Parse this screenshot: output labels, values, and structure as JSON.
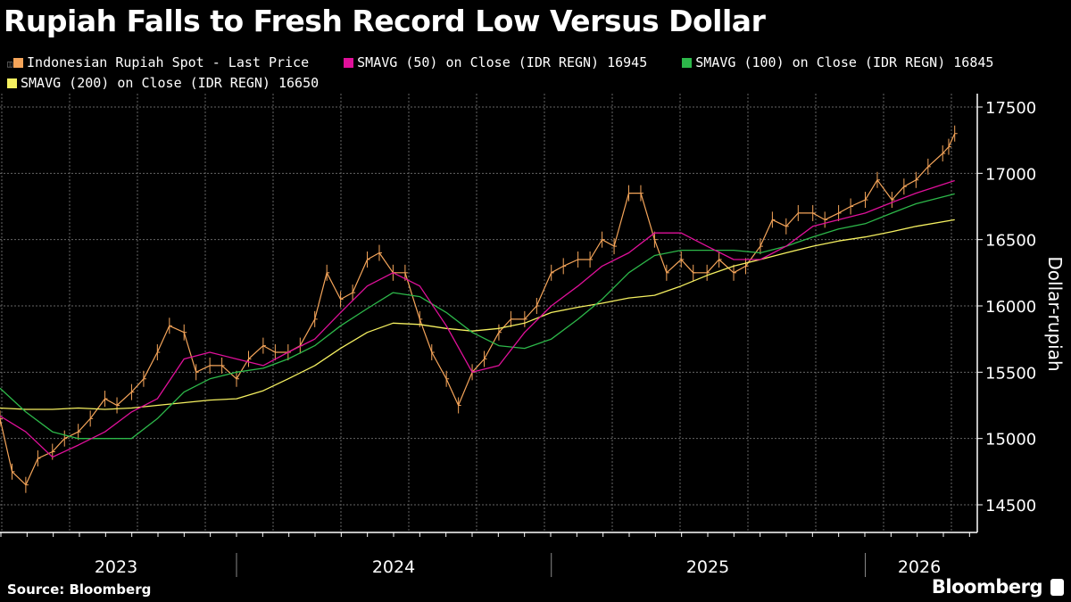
{
  "title": "Rupiah Falls to Fresh Record Low Versus Dollar",
  "legend": [
    {
      "label": "Indonesian Rupiah Spot - Last Price",
      "color": "#f5a55a"
    },
    {
      "label": "SMAVG (50)  on Close (IDR REGN) 16945",
      "color": "#e0109a"
    },
    {
      "label": "SMAVG (100)  on Close (IDR REGN) 16845",
      "color": "#2db84a"
    },
    {
      "label": "SMAVG (200)  on Close (IDR REGN)  16650",
      "color": "#f5f060"
    }
  ],
  "source": "Source: Bloomberg",
  "logo": "Bloomberg",
  "chart_data": {
    "type": "line",
    "title": "Rupiah Falls to Fresh Record Low Versus Dollar",
    "ylabel": "Dollar-rupiah",
    "ylim": [
      14400,
      17600
    ],
    "yticks": [
      "14500",
      "15000",
      "15500",
      "16000",
      "16500",
      "17000",
      "17500"
    ],
    "xtick_labels": [
      "2023",
      "2024",
      "2025",
      "2026"
    ],
    "grid": true,
    "y_axis_side": "right",
    "series": [
      {
        "name": "Indonesian Rupiah Spot - Last Price",
        "color": "#f5a55a",
        "x": [
          "2023-04-01",
          "2023-04-15",
          "2023-05-01",
          "2023-05-15",
          "2023-06-01",
          "2023-06-15",
          "2023-07-01",
          "2023-07-15",
          "2023-08-01",
          "2023-08-15",
          "2023-09-01",
          "2023-09-15",
          "2023-10-01",
          "2023-10-15",
          "2023-11-01",
          "2023-11-15",
          "2023-12-01",
          "2023-12-15",
          "2024-01-01",
          "2024-01-15",
          "2024-02-01",
          "2024-02-15",
          "2024-03-01",
          "2024-03-15",
          "2024-04-01",
          "2024-04-15",
          "2024-05-01",
          "2024-05-15",
          "2024-06-01",
          "2024-06-15",
          "2024-07-01",
          "2024-07-15",
          "2024-08-01",
          "2024-08-15",
          "2024-09-01",
          "2024-09-15",
          "2024-10-01",
          "2024-10-15",
          "2024-11-01",
          "2024-11-15",
          "2024-12-01",
          "2024-12-15",
          "2025-01-01",
          "2025-01-15",
          "2025-02-01",
          "2025-02-15",
          "2025-03-01",
          "2025-03-15",
          "2025-04-01",
          "2025-04-15",
          "2025-05-01",
          "2025-05-15",
          "2025-06-01",
          "2025-06-15",
          "2025-07-01",
          "2025-07-15",
          "2025-08-01",
          "2025-08-15",
          "2025-09-01",
          "2025-09-15",
          "2025-10-01",
          "2025-10-15",
          "2025-11-01",
          "2025-11-15",
          "2025-12-01",
          "2025-12-15",
          "2026-01-01",
          "2026-01-15",
          "2026-02-01",
          "2026-02-15",
          "2026-03-01",
          "2026-03-15",
          "2026-04-01",
          "2026-04-08",
          "2026-04-15"
        ],
        "values": [
          15150,
          14750,
          14650,
          14850,
          14900,
          15000,
          15050,
          15150,
          15300,
          15250,
          15350,
          15450,
          15650,
          15850,
          15800,
          15500,
          15550,
          15550,
          15450,
          15600,
          15700,
          15650,
          15650,
          15700,
          15900,
          16250,
          16050,
          16100,
          16350,
          16400,
          16250,
          16250,
          15900,
          15650,
          15450,
          15250,
          15500,
          15600,
          15800,
          15900,
          15900,
          16000,
          16250,
          16300,
          16350,
          16350,
          16500,
          16450,
          16850,
          16850,
          16500,
          16250,
          16350,
          16250,
          16250,
          16350,
          16250,
          16300,
          16450,
          16650,
          16600,
          16700,
          16700,
          16650,
          16700,
          16750,
          16800,
          16950,
          16800,
          16900,
          16950,
          17050,
          17150,
          17200,
          17300
        ]
      },
      {
        "name": "SMAVG (50)  on Close (IDR REGN)",
        "color": "#e0109a",
        "x": [
          "2023-04-01",
          "2023-05-01",
          "2023-06-01",
          "2023-07-01",
          "2023-08-01",
          "2023-09-01",
          "2023-10-01",
          "2023-11-01",
          "2023-12-01",
          "2024-01-01",
          "2024-02-01",
          "2024-03-01",
          "2024-04-01",
          "2024-05-01",
          "2024-06-01",
          "2024-07-01",
          "2024-08-01",
          "2024-09-01",
          "2024-10-01",
          "2024-11-01",
          "2024-12-01",
          "2025-01-01",
          "2025-02-01",
          "2025-03-01",
          "2025-04-01",
          "2025-05-01",
          "2025-06-01",
          "2025-07-01",
          "2025-08-01",
          "2025-09-01",
          "2025-10-01",
          "2025-11-01",
          "2025-12-01",
          "2026-01-01",
          "2026-02-01",
          "2026-03-01",
          "2026-04-15"
        ],
        "values": [
          15170,
          15050,
          14860,
          14950,
          15050,
          15200,
          15300,
          15600,
          15650,
          15600,
          15550,
          15650,
          15750,
          15950,
          16150,
          16250,
          16150,
          15850,
          15500,
          15550,
          15800,
          16000,
          16150,
          16300,
          16400,
          16550,
          16550,
          16450,
          16350,
          16350,
          16450,
          16600,
          16650,
          16700,
          16780,
          16850,
          16945
        ]
      },
      {
        "name": "SMAVG (100)  on Close (IDR REGN)",
        "color": "#2db84a",
        "x": [
          "2023-04-01",
          "2023-05-01",
          "2023-06-01",
          "2023-07-01",
          "2023-08-01",
          "2023-09-01",
          "2023-10-01",
          "2023-11-01",
          "2023-12-01",
          "2024-01-01",
          "2024-02-01",
          "2024-03-01",
          "2024-04-01",
          "2024-05-01",
          "2024-06-01",
          "2024-07-01",
          "2024-08-01",
          "2024-09-01",
          "2024-10-01",
          "2024-11-01",
          "2024-12-01",
          "2025-01-01",
          "2025-02-01",
          "2025-03-01",
          "2025-04-01",
          "2025-05-01",
          "2025-06-01",
          "2025-07-01",
          "2025-08-01",
          "2025-09-01",
          "2025-10-01",
          "2025-11-01",
          "2025-12-01",
          "2026-01-01",
          "2026-02-01",
          "2026-03-01",
          "2026-04-15"
        ],
        "values": [
          15380,
          15200,
          15050,
          15000,
          15000,
          15000,
          15150,
          15350,
          15450,
          15500,
          15530,
          15600,
          15700,
          15850,
          15980,
          16100,
          16070,
          15950,
          15800,
          15700,
          15680,
          15750,
          15900,
          16050,
          16250,
          16380,
          16420,
          16420,
          16420,
          16400,
          16450,
          16520,
          16580,
          16620,
          16700,
          16770,
          16845
        ]
      },
      {
        "name": "SMAVG (200)  on Close (IDR REGN)",
        "color": "#f5f060",
        "x": [
          "2023-04-01",
          "2023-05-01",
          "2023-06-01",
          "2023-07-01",
          "2023-08-01",
          "2023-09-01",
          "2023-10-01",
          "2023-11-01",
          "2023-12-01",
          "2024-01-01",
          "2024-02-01",
          "2024-03-01",
          "2024-04-01",
          "2024-05-01",
          "2024-06-01",
          "2024-07-01",
          "2024-08-01",
          "2024-09-01",
          "2024-10-01",
          "2024-11-01",
          "2024-12-01",
          "2025-01-01",
          "2025-02-01",
          "2025-03-01",
          "2025-04-01",
          "2025-05-01",
          "2025-06-01",
          "2025-07-01",
          "2025-08-01",
          "2025-09-01",
          "2025-10-01",
          "2025-11-01",
          "2025-12-01",
          "2026-01-01",
          "2026-02-01",
          "2026-03-01",
          "2026-04-15"
        ],
        "values": [
          15230,
          15220,
          15220,
          15230,
          15220,
          15230,
          15250,
          15270,
          15290,
          15300,
          15360,
          15450,
          15550,
          15680,
          15800,
          15870,
          15860,
          15830,
          15810,
          15830,
          15870,
          15950,
          15990,
          16020,
          16060,
          16080,
          16150,
          16230,
          16300,
          16350,
          16400,
          16450,
          16490,
          16520,
          16560,
          16600,
          16650
        ]
      }
    ]
  }
}
